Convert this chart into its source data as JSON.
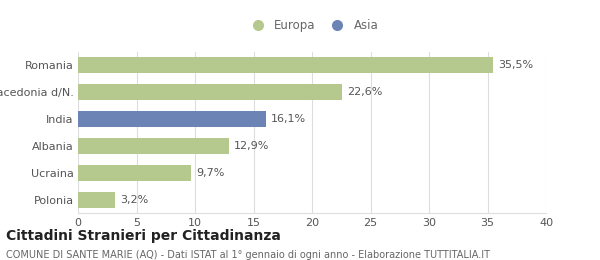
{
  "categories": [
    "Romania",
    "Macedonia d/N.",
    "India",
    "Albania",
    "Ucraina",
    "Polonia"
  ],
  "values": [
    35.5,
    22.6,
    16.1,
    12.9,
    9.7,
    3.2
  ],
  "labels": [
    "35,5%",
    "22,6%",
    "16,1%",
    "12,9%",
    "9,7%",
    "3,2%"
  ],
  "colors": [
    "#b5c98e",
    "#b5c98e",
    "#6b83b5",
    "#b5c98e",
    "#b5c98e",
    "#b5c98e"
  ],
  "legend_items": [
    {
      "label": "Europa",
      "color": "#b5c98e"
    },
    {
      "label": "Asia",
      "color": "#6b83b5"
    }
  ],
  "xlim": [
    0,
    40
  ],
  "xticks": [
    0,
    5,
    10,
    15,
    20,
    25,
    30,
    35,
    40
  ],
  "title": "Cittadini Stranieri per Cittadinanza",
  "subtitle": "COMUNE DI SANTE MARIE (AQ) - Dati ISTAT al 1° gennaio di ogni anno - Elaborazione TUTTITALIA.IT",
  "bar_height": 0.6,
  "background_color": "#ffffff",
  "grid_color": "#dddddd",
  "label_fontsize": 8,
  "tick_fontsize": 8,
  "title_fontsize": 10,
  "subtitle_fontsize": 7
}
